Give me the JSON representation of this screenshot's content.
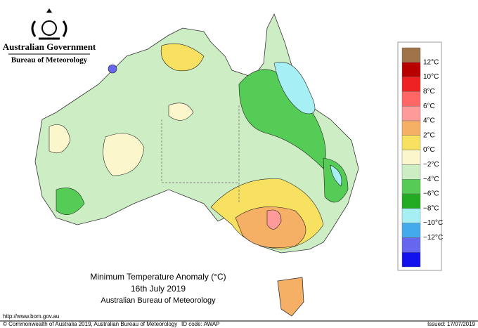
{
  "header": {
    "line1": "Australian Government",
    "line2": "Bureau of Meteorology"
  },
  "legend": {
    "colors": [
      "#a0724a",
      "#b80000",
      "#ee2222",
      "#ff6666",
      "#ff9a9a",
      "#f5b066",
      "#f8e060",
      "#fbf6cc",
      "#cdeec4",
      "#55cc55",
      "#22aa22",
      "#a6f0f5",
      "#44aaee",
      "#6666ee",
      "#1111ee"
    ],
    "labels": [
      "12°C",
      "10°C",
      "8°C",
      "6°C",
      "4°C",
      "2°C",
      "0°C",
      "−2°C",
      "−4°C",
      "−6°C",
      "−8°C",
      "−10°C",
      "−12°C"
    ]
  },
  "title": {
    "line1": "Minimum Temperature Anomaly (°C)",
    "line2": "16th July 2019",
    "line3": "Australian Bureau of Meteorology"
  },
  "footer": {
    "url": "http://www.bom.gov.au",
    "copyright": "© Commonwealth of Australia 2019, Australian Bureau of Meteorology",
    "id": "ID code: AWAP",
    "issued": "Issued: 17/07/2019"
  }
}
